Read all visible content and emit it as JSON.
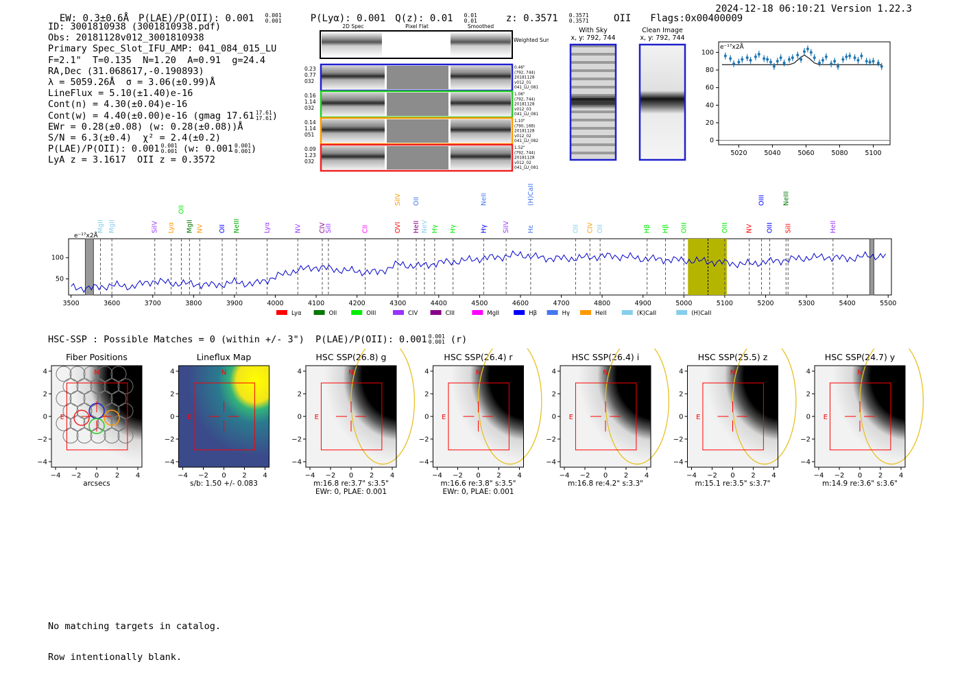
{
  "header": {
    "ew": "EW: 0.3±0.6Å",
    "plae": "P(LAE)/P(OII): 0.001",
    "plae_sup": "0.001",
    "plae_sub": "0.001",
    "plya": "P(Lyα): 0.001",
    "qz": "Q(z): 0.01",
    "qz_sup": "0.01",
    "qz_sub": "0.01",
    "z": "z: 0.3571",
    "z_sup": "0.3571",
    "z_sub": "0.3571",
    "z_tag": "OII",
    "flags": "Flags:0x00400009",
    "timestamp": "2024-12-18 06:10:21",
    "version": "Version 1.22.3"
  },
  "info": {
    "lines": [
      "ID: 3001810938 (3001810938.pdf)",
      "Obs: 20181128v012_3001810938",
      "Primary Spec_Slot_IFU_AMP: 041_084_015_LU",
      "F=2.1\"  T=0.135  N=1.20  A=0.91  g=24.4",
      "RA,Dec (31.068617,-0.190893)",
      "λ = 5059.26Å  σ = 3.06(±0.99)Å",
      "LineFlux = 5.10(±1.40)e-16",
      "Cont(n) = 4.30(±0.04)e-16",
      "Cont(w) = 4.40(±0.00)e-16 (gmag 17.61",
      "EWr = 0.28(±0.08) (w: 0.28(±0.08))Å",
      "S/N = 6.3(±0.4)  χ² = 2.4(±0.2)",
      "P(LAE)/P(OII): 0.001",
      "LyA z = 3.1617  OII z = 0.3572"
    ],
    "gmag_sup": "17.61",
    "gmag_sub": "17.61",
    "plae_sup": "0.001",
    "plae_sub": "0.001",
    "plae_w": "(w: 0.001",
    "plae_w_sup": "0.001",
    "plae_w_sub": "0.001"
  },
  "cutouts": {
    "col_headers": [
      "2D Spec",
      "Pixel Flat",
      "Smoothed"
    ],
    "weighted_sum": "Weighted Sum",
    "rows": [
      {
        "left": [
          "0.23",
          "0.77",
          "032"
        ],
        "right": [
          "0.46\"",
          "(792, 744)",
          "20181128",
          "v012_01",
          "041_LU_081"
        ],
        "color": "#1f1fcc"
      },
      {
        "left": [
          "0.16",
          "1.14",
          "032"
        ],
        "right": [
          "1.06\"",
          "(792, 744)",
          "20181128",
          "v012_03",
          "041_LU_081"
        ],
        "color": "#22cc22"
      },
      {
        "left": [
          "0.14",
          "1.14",
          "051"
        ],
        "right": [
          "1.10\"",
          "(790, 168)",
          "20181128",
          "v012_02",
          "041_LU_082"
        ],
        "color": "#ff9900"
      },
      {
        "left": [
          "0.09",
          "1.23",
          "032"
        ],
        "right": [
          "1.52\"",
          "(792, 744)",
          "20181128",
          "v012_02",
          "041_LU_081"
        ],
        "color": "#ee2222"
      }
    ],
    "with_sky": "With Sky",
    "clean_image": "Clean Image",
    "xy": "x, y: 792, 744"
  },
  "zoom_chart": {
    "unit": "e⁻¹⁷x2Å",
    "x_ticks": [
      5020,
      5040,
      5060,
      5080,
      5100
    ],
    "y_ticks": [
      0,
      20,
      40,
      60,
      80,
      100
    ]
  },
  "chart_data": [
    {
      "type": "scatter",
      "title": "",
      "ylabel": "e⁻¹⁷x2Å",
      "xlim": [
        5008,
        5110
      ],
      "ylim": [
        -5,
        112
      ],
      "series": [
        {
          "x": [
            5012,
            5015,
            5017,
            5020,
            5022,
            5025,
            5027,
            5030,
            5032,
            5035,
            5037,
            5039,
            5041,
            5043,
            5045,
            5047,
            5050,
            5052,
            5055,
            5057,
            5059,
            5061,
            5063,
            5065,
            5068,
            5070,
            5072,
            5075,
            5077,
            5079,
            5082,
            5084,
            5086,
            5089,
            5091,
            5093,
            5096,
            5098,
            5100,
            5103,
            5105
          ],
          "y": [
            96,
            93,
            87,
            89,
            92,
            94,
            91,
            95,
            98,
            93,
            92,
            89,
            84,
            90,
            94,
            88,
            92,
            94,
            97,
            92,
            101,
            104,
            100,
            94,
            88,
            91,
            95,
            87,
            90,
            84,
            92,
            95,
            96,
            94,
            91,
            96,
            90,
            89,
            90,
            88,
            84
          ]
        },
        {
          "name": "fit",
          "x": [
            5010,
            5050,
            5053,
            5056,
            5059,
            5062,
            5065,
            5068,
            5105
          ],
          "y": [
            86,
            86,
            88,
            93,
            97,
            93,
            88,
            86,
            86
          ]
        }
      ]
    },
    {
      "type": "line",
      "title": "",
      "ylabel": "e⁻¹⁷x2Å",
      "xlim": [
        3494,
        5508
      ],
      "ylim": [
        12,
        145
      ],
      "x_ticks": [
        3500,
        3600,
        3700,
        3800,
        3900,
        4000,
        4100,
        4200,
        4300,
        4400,
        4500,
        4600,
        4700,
        4800,
        4900,
        5000,
        5100,
        5200,
        5300,
        5400,
        5500
      ],
      "y_ticks": [
        50,
        100
      ],
      "x": [
        3500,
        3550,
        3600,
        3650,
        3700,
        3750,
        3800,
        3850,
        3900,
        3950,
        4000,
        4050,
        4100,
        4150,
        4200,
        4250,
        4300,
        4350,
        4400,
        4450,
        4500,
        4550,
        4600,
        4650,
        4700,
        4750,
        4800,
        4850,
        4900,
        4950,
        5000,
        5050,
        5100,
        5150,
        5200,
        5250,
        5300,
        5350,
        5400,
        5450,
        5500
      ],
      "y": [
        30,
        28,
        35,
        32,
        45,
        40,
        38,
        35,
        42,
        38,
        55,
        70,
        78,
        72,
        68,
        65,
        85,
        80,
        88,
        92,
        98,
        102,
        108,
        100,
        98,
        100,
        104,
        103,
        98,
        96,
        94,
        92,
        88,
        85,
        90,
        95,
        100,
        102,
        98,
        104,
        105
      ],
      "highlight": [
        5010,
        5105
      ],
      "marker": 5059
    }
  ],
  "legend": [
    {
      "label": "Lyα",
      "color": "#ff0000"
    },
    {
      "label": "OII",
      "color": "#007700"
    },
    {
      "label": "OIII",
      "color": "#00ee00"
    },
    {
      "label": "CIV",
      "color": "#9933ff"
    },
    {
      "label": "CIII",
      "color": "#880088"
    },
    {
      "label": "MgII",
      "color": "#ff00ff"
    },
    {
      "label": "Hβ",
      "color": "#0000ff"
    },
    {
      "label": "Hγ",
      "color": "#4477ee"
    },
    {
      "label": "HeII",
      "color": "#ff9900"
    },
    {
      "label": "(K)CaII",
      "color": "#87ceeb"
    },
    {
      "label": "(H)CaII",
      "color": "#87ceeb"
    }
  ],
  "lines_labels": [
    {
      "label": "MgII",
      "x": 3572,
      "row": 2,
      "color": "#87ceeb"
    },
    {
      "label": "MgII",
      "x": 3600,
      "row": 2,
      "color": "#87ceeb"
    },
    {
      "label": "SiIV",
      "x": 3705,
      "row": 2,
      "color": "#9933ff"
    },
    {
      "label": "Lyα",
      "x": 3745,
      "row": 2,
      "color": "#ff9900"
    },
    {
      "label": "OII",
      "x": 3770,
      "row": 1,
      "color": "#00ee00"
    },
    {
      "label": "MgII",
      "x": 3790,
      "row": 2,
      "color": "#007700"
    },
    {
      "label": "NV",
      "x": 3815,
      "row": 2,
      "color": "#ff9900"
    },
    {
      "label": "OII",
      "x": 3870,
      "row": 2,
      "color": "#0000ff"
    },
    {
      "label": "NeIII",
      "x": 3905,
      "row": 2,
      "color": "#00aa00"
    },
    {
      "label": "Lyα",
      "x": 3980,
      "row": 2,
      "color": "#9933ff"
    },
    {
      "label": "NV",
      "x": 4055,
      "row": 2,
      "color": "#9933ff"
    },
    {
      "label": "CIV",
      "x": 4115,
      "row": 2,
      "color": "#880088"
    },
    {
      "label": "SiII",
      "x": 4130,
      "row": 2,
      "color": "#9933ff"
    },
    {
      "label": "CII",
      "x": 4220,
      "row": 2,
      "color": "#ff00ff"
    },
    {
      "label": "SiIV",
      "x": 4300,
      "row": 0,
      "color": "#ff9900"
    },
    {
      "label": "OVI",
      "x": 4300,
      "row": 2,
      "color": "#ff0000"
    },
    {
      "label": "OII",
      "x": 4345,
      "row": 0,
      "color": "#4477ee"
    },
    {
      "label": "HeII",
      "x": 4345,
      "row": 2,
      "color": "#880088"
    },
    {
      "label": "NeV",
      "x": 4365,
      "row": 2,
      "color": "#87ceeb"
    },
    {
      "label": "Hγ",
      "x": 4390,
      "row": 2,
      "color": "#00ee00"
    },
    {
      "label": "Hγ",
      "x": 4435,
      "row": 2,
      "color": "#00ee00"
    },
    {
      "label": "NeII",
      "x": 4510,
      "row": 0,
      "color": "#4477ee"
    },
    {
      "label": "Hγ",
      "x": 4510,
      "row": 2,
      "color": "#0000ff"
    },
    {
      "label": "SiIV",
      "x": 4565,
      "row": 2,
      "color": "#9933ff"
    },
    {
      "label": "(H)CaII",
      "x": 4625,
      "row": 0,
      "color": "#4477ee"
    },
    {
      "label": "Hε",
      "x": 4625,
      "row": 2,
      "color": "#4477ee"
    },
    {
      "label": "OII",
      "x": 4735,
      "row": 2,
      "color": "#87ceeb"
    },
    {
      "label": "CIV",
      "x": 4770,
      "row": 2,
      "color": "#ff9900"
    },
    {
      "label": "OII",
      "x": 4795,
      "row": 2,
      "color": "#87ceeb"
    },
    {
      "label": "Hβ",
      "x": 4910,
      "row": 2,
      "color": "#00ee00"
    },
    {
      "label": "Hβ",
      "x": 4955,
      "row": 2,
      "color": "#00ee00"
    },
    {
      "label": "OIII",
      "x": 5000,
      "row": 2,
      "color": "#00ee00"
    },
    {
      "label": "OIII",
      "x": 5100,
      "row": 2,
      "color": "#00ee00"
    },
    {
      "label": "NV",
      "x": 5160,
      "row": 2,
      "color": "#ff0000"
    },
    {
      "label": "OIII",
      "x": 5190,
      "row": 0,
      "color": "#0000ff"
    },
    {
      "label": "OIII",
      "x": 5210,
      "row": 2,
      "color": "#0000ff"
    },
    {
      "label": "NeIII",
      "x": 5250,
      "row": 0,
      "color": "#007700"
    },
    {
      "label": "SiII",
      "x": 5255,
      "row": 2,
      "color": "#ff0000"
    },
    {
      "label": "HeII",
      "x": 5365,
      "row": 2,
      "color": "#9933ff"
    }
  ],
  "hsc_line": "HSC-SSP : Possible Matches = 0 (within +/- 3\")  P(LAE)/P(OII): 0.001",
  "hsc_sup": "0.001",
  "hsc_sub": "0.001",
  "hsc_band": "(r)",
  "thumbs": [
    {
      "title": "Fiber Positions",
      "caption1": "arcsecs",
      "caption2": "",
      "kind": "fiber"
    },
    {
      "title": "Lineflux Map",
      "caption1": "s/b: 1.50 +/- 0.083",
      "caption2": "",
      "kind": "flux"
    },
    {
      "title": "HSC SSP(26.8) g",
      "caption1": "m:16.8  re:3.7\"  s:3.5\"",
      "caption2": "EWr: 0, PLAE: 0.001",
      "kind": "hsc"
    },
    {
      "title": "HSC SSP(26.4) r",
      "caption1": "m:16.6  re:3.8\"  s:3.5\"",
      "caption2": "EWr: 0, PLAE: 0.001",
      "kind": "hsc"
    },
    {
      "title": "HSC SSP(26.4) i",
      "caption1": "m:16.8  re:4.2\"  s:3.3\"",
      "caption2": "",
      "kind": "hsc"
    },
    {
      "title": "HSC SSP(25.5) z",
      "caption1": "m:15.1  re:3.5\"  s:3.7\"",
      "caption2": "",
      "kind": "hsc"
    },
    {
      "title": "HSC SSP(24.7) y",
      "caption1": "m:14.9  re:3.6\"  s:3.6\"",
      "caption2": "",
      "kind": "hsc"
    }
  ],
  "thumb_ticks": [
    "−4",
    "−2",
    "0",
    "2",
    "4"
  ],
  "thumb_yticks": [
    "4",
    "2",
    "0",
    "−2",
    "−4"
  ],
  "compass_n": "N",
  "compass_e": "E",
  "footer": [
    "No matching targets in catalog.",
    "Row intentionally blank."
  ]
}
